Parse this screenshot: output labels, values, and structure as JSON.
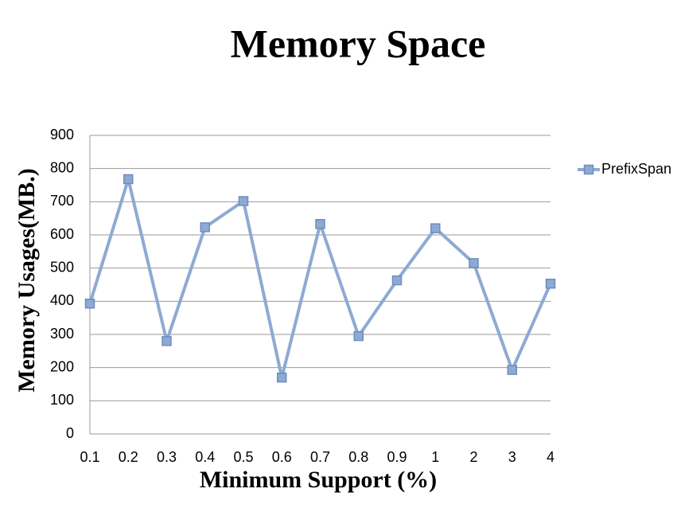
{
  "chart_data": {
    "type": "line",
    "title": "Memory Space",
    "x_label": "Minimum Support (%)",
    "y_label": "Memory Usages(MB.)",
    "categories": [
      "0.1",
      "0.2",
      "0.3",
      "0.4",
      "0.5",
      "0.6",
      "0.7",
      "0.8",
      "0.9",
      "1",
      "2",
      "3",
      "4"
    ],
    "series": [
      {
        "name": "PrefixSpan",
        "color": "#8eaad3",
        "values": [
          393,
          768,
          280,
          623,
          702,
          170,
          633,
          295,
          463,
          620,
          515,
          193,
          453
        ]
      }
    ],
    "ylim": [
      0,
      900
    ],
    "yticks": [
      0,
      100,
      200,
      300,
      400,
      500,
      600,
      700,
      800,
      900
    ],
    "grid": true,
    "legend": "right"
  }
}
